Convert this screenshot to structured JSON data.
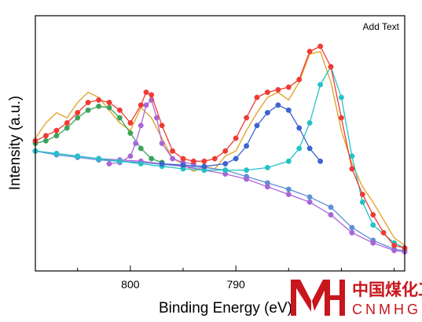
{
  "chart_data": {
    "type": "line",
    "xlabel": "Binding Energy (eV)",
    "ylabel": "Intensity (a.u.)",
    "annotation": "Add Text",
    "x_reversed": true,
    "xlim": [
      809,
      774
    ],
    "ylim": [
      0,
      1
    ],
    "x_ticks": [
      800,
      790
    ],
    "y_ticks_shown": false,
    "grid": false,
    "legend": "none",
    "raw_x": [
      809,
      808,
      807,
      806,
      805,
      804,
      803,
      802,
      801,
      800,
      799,
      798,
      797,
      796,
      795,
      794,
      793,
      792,
      791,
      790,
      789,
      788,
      787,
      786,
      785,
      784,
      783,
      782,
      781,
      780,
      779,
      778,
      777,
      776,
      775,
      774
    ],
    "raw_y": [
      0.52,
      0.58,
      0.62,
      0.6,
      0.66,
      0.7,
      0.68,
      0.63,
      0.58,
      0.55,
      0.64,
      0.6,
      0.52,
      0.44,
      0.42,
      0.39,
      0.41,
      0.4,
      0.45,
      0.47,
      0.55,
      0.62,
      0.68,
      0.7,
      0.67,
      0.74,
      0.85,
      0.86,
      0.74,
      0.55,
      0.42,
      0.33,
      0.27,
      0.2,
      0.13,
      0.1
    ],
    "series": [
      {
        "color": "#5f8fd6",
        "x": [
          809,
          807,
          805,
          803,
          801,
          799,
          797,
          795,
          793,
          791,
          789,
          787,
          785,
          783,
          781,
          779,
          777,
          775,
          774
        ],
        "y": [
          0.47,
          0.455,
          0.445,
          0.435,
          0.43,
          0.425,
          0.418,
          0.41,
          0.405,
          0.395,
          0.37,
          0.345,
          0.32,
          0.29,
          0.25,
          0.17,
          0.12,
          0.085,
          0.08
        ]
      },
      {
        "color": "#a865d8",
        "x": [
          809,
          807,
          805,
          803,
          801,
          799,
          797,
          795,
          793,
          791,
          789,
          787,
          785,
          783,
          781,
          779,
          777,
          775,
          774
        ],
        "y": [
          0.47,
          0.46,
          0.45,
          0.44,
          0.435,
          0.43,
          0.42,
          0.41,
          0.395,
          0.38,
          0.36,
          0.33,
          0.3,
          0.27,
          0.22,
          0.15,
          0.11,
          0.08,
          0.075
        ]
      },
      {
        "color": "#3ca35a",
        "x": [
          809,
          808,
          807,
          806,
          805,
          804,
          803,
          802,
          801,
          800,
          799,
          798,
          797
        ],
        "y": [
          0.5,
          0.51,
          0.53,
          0.56,
          0.6,
          0.63,
          0.645,
          0.64,
          0.6,
          0.54,
          0.48,
          0.44,
          0.425
        ]
      },
      {
        "color": "#a866d8",
        "x": [
          802,
          801,
          800,
          799.5,
          799,
          798.5,
          798,
          797.5,
          797,
          796,
          795,
          794
        ],
        "y": [
          0.42,
          0.425,
          0.45,
          0.5,
          0.57,
          0.65,
          0.67,
          0.6,
          0.5,
          0.44,
          0.425,
          0.42
        ]
      },
      {
        "color": "#24c2c7",
        "x": [
          809,
          807,
          805,
          803,
          801,
          799,
          797,
          795,
          793,
          791,
          789,
          787,
          785,
          784,
          783,
          782,
          781,
          780,
          779,
          778,
          777,
          775,
          774
        ],
        "y": [
          0.47,
          0.46,
          0.45,
          0.44,
          0.43,
          0.42,
          0.41,
          0.4,
          0.395,
          0.395,
          0.395,
          0.405,
          0.43,
          0.48,
          0.58,
          0.73,
          0.8,
          0.68,
          0.45,
          0.27,
          0.18,
          0.11,
          0.09
        ]
      },
      {
        "color": "#3b64cf",
        "x": [
          797,
          795,
          793,
          791,
          790,
          789,
          788,
          787,
          786,
          785,
          784,
          783,
          782
        ],
        "y": [
          0.42,
          0.415,
          0.41,
          0.42,
          0.44,
          0.49,
          0.57,
          0.62,
          0.65,
          0.63,
          0.56,
          0.48,
          0.43
        ]
      },
      {
        "color": "#ef3a33",
        "x": [
          809,
          808,
          807,
          806,
          805,
          804,
          803,
          802,
          801,
          800,
          799,
          798.5,
          798,
          797,
          796,
          795,
          794,
          793,
          792,
          791,
          790,
          789,
          788,
          787,
          786,
          785,
          784,
          783,
          782,
          781,
          780,
          779,
          778,
          777,
          776,
          775,
          774
        ],
        "y": [
          0.51,
          0.53,
          0.55,
          0.58,
          0.62,
          0.66,
          0.67,
          0.66,
          0.63,
          0.58,
          0.65,
          0.7,
          0.69,
          0.57,
          0.47,
          0.44,
          0.43,
          0.43,
          0.44,
          0.47,
          0.52,
          0.6,
          0.68,
          0.7,
          0.71,
          0.72,
          0.75,
          0.86,
          0.88,
          0.8,
          0.6,
          0.4,
          0.3,
          0.22,
          0.15,
          0.1,
          0.09
        ]
      }
    ]
  },
  "logo": {
    "text_cn": "中国煤化工",
    "text_en": "CNMHG"
  }
}
